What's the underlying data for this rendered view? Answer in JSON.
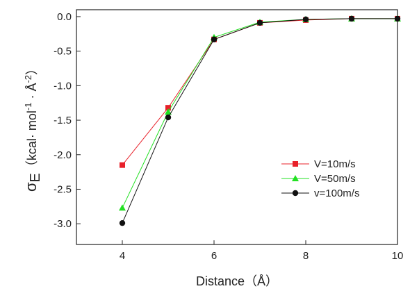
{
  "chart_data": {
    "type": "line",
    "title": "",
    "xlabel": "Distance (Å)",
    "ylabel": "σE (kcal· mol-1 · Å-2 )",
    "ylabel_parts": {
      "sigma": "σ",
      "sub": "E",
      "open": "（kcal· mol",
      "sup1": "-1",
      "mid": " · Å",
      "sup2": "-2",
      "close": "）"
    },
    "xlabel_display": "Distance（Å）",
    "xlim": [
      3,
      10
    ],
    "ylim": [
      -3.3,
      0.1
    ],
    "xticks": [
      4,
      6,
      8,
      10
    ],
    "yticks": [
      0.0,
      -0.5,
      -1.0,
      -1.5,
      -2.0,
      -2.5,
      -3.0
    ],
    "ytick_labels": [
      "0.0",
      "-0.5",
      "-1.0",
      "-1.5",
      "-2.0",
      "-2.5",
      "-3.0"
    ],
    "xtick_labels": [
      "4",
      "6",
      "8",
      "10"
    ],
    "grid": false,
    "legend_position": "right",
    "series": [
      {
        "name": "V=10m/s",
        "color": "#e8202a",
        "marker": "square",
        "x": [
          4,
          5,
          6,
          7,
          8,
          9,
          10
        ],
        "y": [
          -2.15,
          -1.32,
          -0.33,
          -0.09,
          -0.05,
          -0.03,
          -0.03
        ]
      },
      {
        "name": "V=50m/s",
        "color": "#22e022",
        "marker": "triangle",
        "x": [
          4,
          5,
          6,
          7,
          8,
          9,
          10
        ],
        "y": [
          -2.77,
          -1.38,
          -0.3,
          -0.08,
          -0.04,
          -0.03,
          -0.03
        ]
      },
      {
        "name": "v=100m/s",
        "color": "#111111",
        "marker": "circle",
        "x": [
          4,
          5,
          6,
          7,
          8,
          9,
          10
        ],
        "y": [
          -2.99,
          -1.46,
          -0.33,
          -0.09,
          -0.04,
          -0.03,
          -0.03
        ]
      }
    ]
  }
}
